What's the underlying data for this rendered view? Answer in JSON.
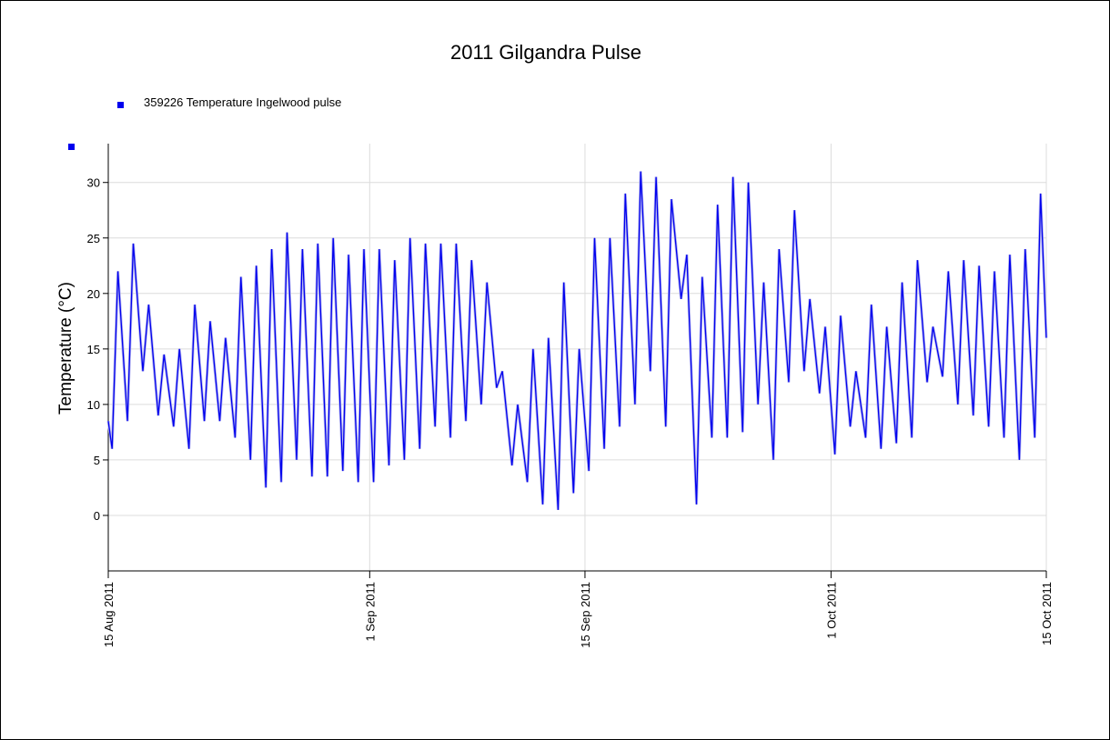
{
  "chart_data": {
    "type": "line",
    "title": "2011 Gilgandra Pulse",
    "ylabel": "Temperature (°C)",
    "series": [
      {
        "name": "359226  Temperature Ingelwood pulse",
        "color": "#0000ee",
        "x": [
          "2011-08-15 00:00",
          "2011-08-15 06:00",
          "2011-08-15 15:00",
          "2011-08-16 06:00",
          "2011-08-16 15:00",
          "2011-08-17 06:00",
          "2011-08-17 15:00",
          "2011-08-18 06:00",
          "2011-08-18 15:00",
          "2011-08-19 06:00",
          "2011-08-19 15:00",
          "2011-08-20 06:00",
          "2011-08-20 15:00",
          "2011-08-21 06:00",
          "2011-08-21 15:00",
          "2011-08-22 06:00",
          "2011-08-22 15:00",
          "2011-08-23 06:00",
          "2011-08-23 15:00",
          "2011-08-24 06:00",
          "2011-08-24 15:00",
          "2011-08-25 06:00",
          "2011-08-25 15:00",
          "2011-08-26 06:00",
          "2011-08-26 15:00",
          "2011-08-27 06:00",
          "2011-08-27 15:00",
          "2011-08-28 06:00",
          "2011-08-28 15:00",
          "2011-08-29 06:00",
          "2011-08-29 15:00",
          "2011-08-30 06:00",
          "2011-08-30 15:00",
          "2011-08-31 06:00",
          "2011-08-31 15:00",
          "2011-09-01 06:00",
          "2011-09-01 15:00",
          "2011-09-02 06:00",
          "2011-09-02 15:00",
          "2011-09-03 06:00",
          "2011-09-03 15:00",
          "2011-09-04 06:00",
          "2011-09-04 15:00",
          "2011-09-05 06:00",
          "2011-09-05 15:00",
          "2011-09-06 06:00",
          "2011-09-06 15:00",
          "2011-09-07 06:00",
          "2011-09-07 15:00",
          "2011-09-08 06:00",
          "2011-09-08 15:00",
          "2011-09-09 06:00",
          "2011-09-09 15:00",
          "2011-09-10 06:00",
          "2011-09-10 15:00",
          "2011-09-11 06:00",
          "2011-09-11 15:00",
          "2011-09-12 06:00",
          "2011-09-12 15:00",
          "2011-09-13 06:00",
          "2011-09-13 15:00",
          "2011-09-14 06:00",
          "2011-09-14 15:00",
          "2011-09-15 06:00",
          "2011-09-15 15:00",
          "2011-09-16 06:00",
          "2011-09-16 15:00",
          "2011-09-17 06:00",
          "2011-09-17 15:00",
          "2011-09-18 06:00",
          "2011-09-18 15:00",
          "2011-09-19 06:00",
          "2011-09-19 15:00",
          "2011-09-20 06:00",
          "2011-09-20 15:00",
          "2011-09-21 06:00",
          "2011-09-21 15:00",
          "2011-09-22 06:00",
          "2011-09-22 15:00",
          "2011-09-23 06:00",
          "2011-09-23 15:00",
          "2011-09-24 06:00",
          "2011-09-24 15:00",
          "2011-09-25 06:00",
          "2011-09-25 15:00",
          "2011-09-26 06:00",
          "2011-09-26 15:00",
          "2011-09-27 06:00",
          "2011-09-27 15:00",
          "2011-09-28 06:00",
          "2011-09-28 15:00",
          "2011-09-29 06:00",
          "2011-09-29 15:00",
          "2011-09-30 06:00",
          "2011-09-30 15:00",
          "2011-10-01 06:00",
          "2011-10-01 15:00",
          "2011-10-02 06:00",
          "2011-10-02 15:00",
          "2011-10-03 06:00",
          "2011-10-03 15:00",
          "2011-10-04 06:00",
          "2011-10-04 15:00",
          "2011-10-05 06:00",
          "2011-10-05 15:00",
          "2011-10-06 06:00",
          "2011-10-06 15:00",
          "2011-10-07 06:00",
          "2011-10-07 15:00",
          "2011-10-08 06:00",
          "2011-10-08 15:00",
          "2011-10-09 06:00",
          "2011-10-09 15:00",
          "2011-10-10 06:00",
          "2011-10-10 15:00",
          "2011-10-11 06:00",
          "2011-10-11 15:00",
          "2011-10-12 06:00",
          "2011-10-12 15:00",
          "2011-10-13 06:00",
          "2011-10-13 15:00",
          "2011-10-14 06:00",
          "2011-10-14 15:00",
          "2011-10-15 00:00"
        ],
        "values": [
          8.5,
          6,
          22,
          8.5,
          24.5,
          13,
          19,
          9,
          14.5,
          8,
          15,
          6,
          19,
          8.5,
          17.5,
          8.5,
          16,
          7,
          21.5,
          5,
          22.5,
          2.5,
          24,
          3,
          25.5,
          5,
          24,
          3.5,
          24.5,
          3.5,
          25,
          4,
          23.5,
          3,
          24,
          3,
          24,
          4.5,
          23,
          5,
          25,
          6,
          24.5,
          8,
          24.5,
          7,
          24.5,
          8.5,
          23,
          10,
          21,
          11.5,
          13,
          4.5,
          10,
          3,
          15,
          1,
          16,
          0.5,
          21,
          2,
          15,
          4,
          25,
          6,
          25,
          8,
          29,
          10,
          31,
          13,
          30.5,
          8,
          28.5,
          19.5,
          23.5,
          1,
          21.5,
          7,
          28,
          7,
          30.5,
          7.5,
          30,
          10,
          21,
          5,
          24,
          12,
          27.5,
          13,
          19.5,
          11,
          17,
          5.5,
          18,
          8,
          13,
          7,
          19,
          6,
          17,
          6.5,
          21,
          7,
          23,
          12,
          17,
          12.5,
          22,
          10,
          23,
          9,
          22.5,
          8,
          22,
          7,
          23.5,
          5,
          24,
          7,
          29,
          16
        ]
      }
    ],
    "xlim": [
      "2011-08-15 00:00",
      "2011-10-15 00:00"
    ],
    "xticks": [
      {
        "value": "2011-08-15",
        "label": "15 Aug 2011"
      },
      {
        "value": "2011-09-01",
        "label": "1 Sep 2011"
      },
      {
        "value": "2011-09-15",
        "label": "15 Sep 2011"
      },
      {
        "value": "2011-10-01",
        "label": "1 Oct 2011"
      },
      {
        "value": "2011-10-15",
        "label": "15 Oct 2011"
      }
    ],
    "ylim": [
      -5,
      33.5
    ],
    "yticks": [
      0,
      5,
      10,
      15,
      20,
      25,
      30
    ],
    "grid": true
  }
}
